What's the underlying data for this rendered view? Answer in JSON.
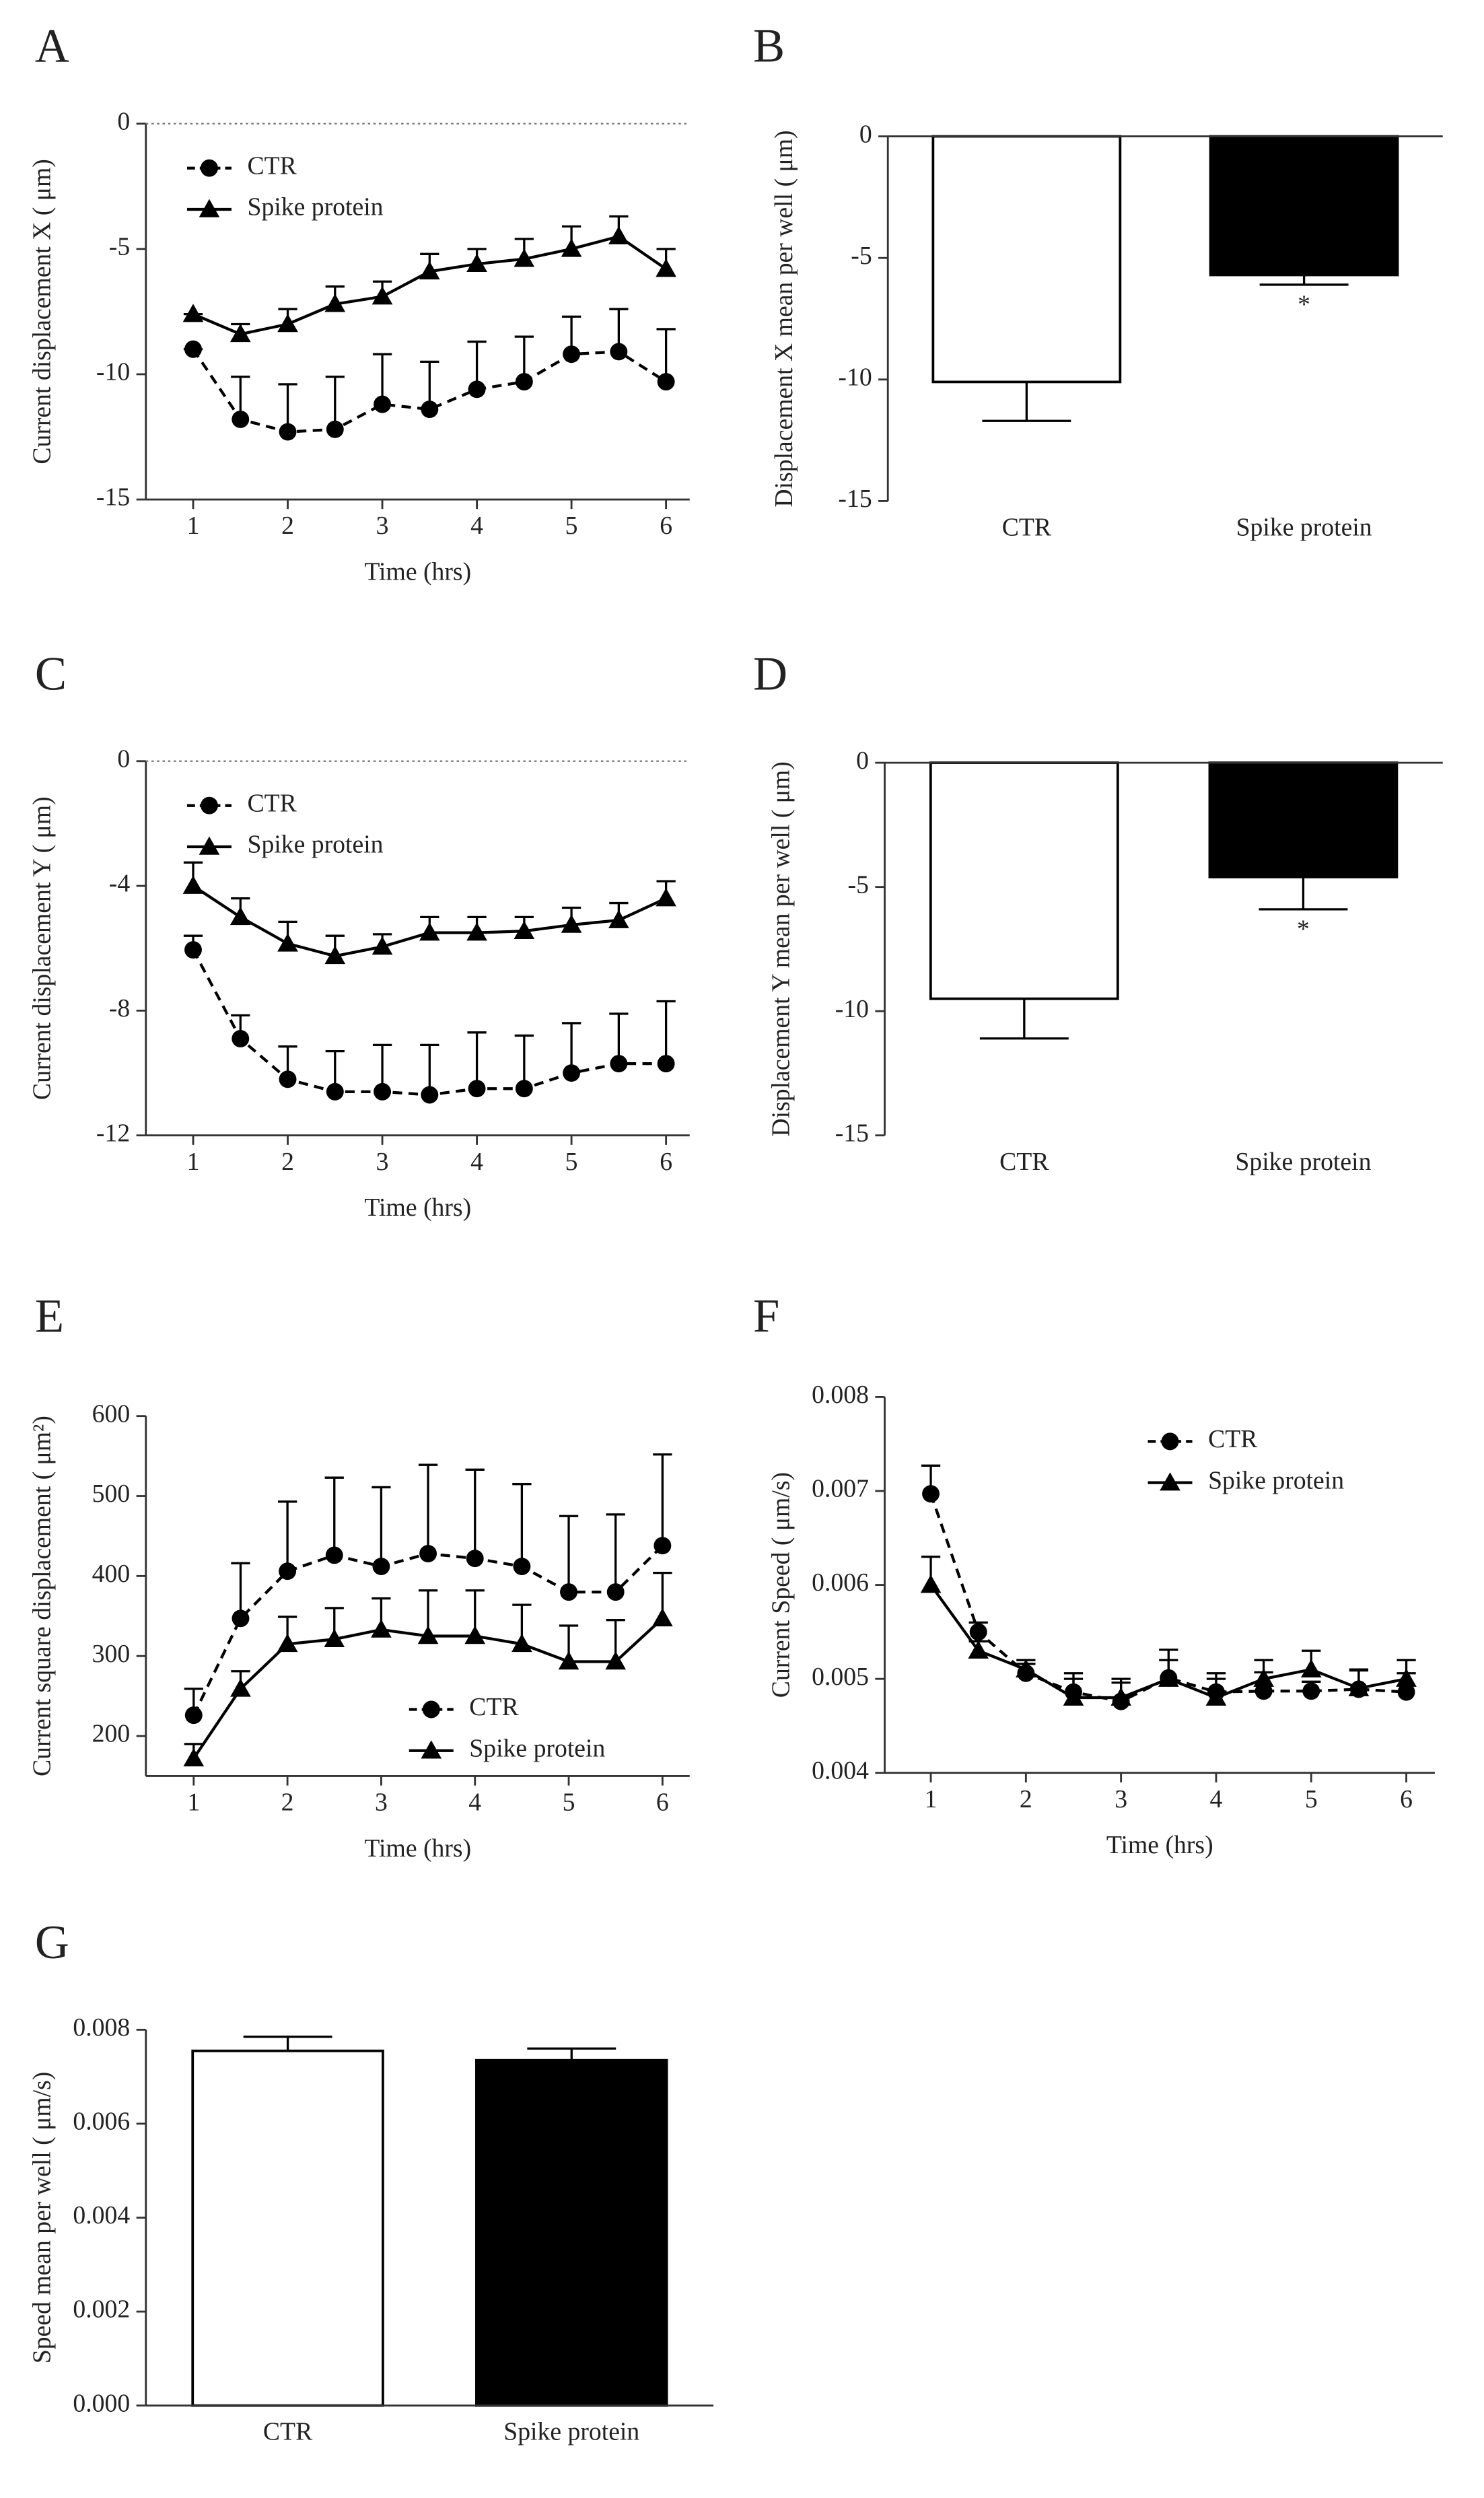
{
  "chart_data": [
    {
      "type": "line",
      "panel_label": "A",
      "xlabel": "Time (hrs)",
      "ylabel": "Current displacement X ( μm)",
      "x": [
        1,
        1.5,
        2,
        2.5,
        3,
        3.5,
        4,
        4.5,
        5,
        5.5,
        6
      ],
      "xlim": [
        0.5,
        6.25
      ],
      "xticks": [
        1,
        2,
        3,
        4,
        5,
        6
      ],
      "ylim": [
        -15,
        0
      ],
      "yticks": [
        0,
        -5,
        -10,
        -15
      ],
      "zero_line": true,
      "legend": "upper left",
      "series": [
        {
          "name": "CTR",
          "color": "#000000",
          "marker": "circle",
          "dashed": true,
          "values": [
            -9.0,
            -11.8,
            -12.3,
            -12.2,
            -11.2,
            -11.4,
            -10.6,
            -10.3,
            -9.2,
            -9.1,
            -10.3
          ],
          "errors": [
            0,
            1.7,
            1.9,
            2.1,
            2.0,
            1.9,
            1.9,
            1.8,
            1.5,
            1.7,
            2.1
          ]
        },
        {
          "name": "Spike protein",
          "color": "#000000",
          "marker": "triangle",
          "dashed": false,
          "values": [
            -7.6,
            -8.4,
            -8.0,
            -7.2,
            -6.9,
            -5.9,
            -5.6,
            -5.4,
            -5.0,
            -4.5,
            -5.8
          ],
          "errors": [
            0,
            0.4,
            0.6,
            0.7,
            0.6,
            0.7,
            0.6,
            0.8,
            0.9,
            0.8,
            0.8
          ]
        }
      ]
    },
    {
      "type": "bar",
      "panel_label": "B",
      "ylabel": "Displacement X mean per well ( μm)",
      "categories": [
        "CTR",
        "Spike protein"
      ],
      "values": [
        -10.1,
        -5.7
      ],
      "errors": [
        1.6,
        0.4
      ],
      "colors": [
        "#ffffff",
        "#000000"
      ],
      "value_annotations": [
        null,
        "*"
      ],
      "ylim": [
        -15,
        0
      ],
      "yticks": [
        0,
        -5,
        -10,
        -15
      ]
    },
    {
      "type": "line",
      "panel_label": "C",
      "xlabel": "Time (hrs)",
      "ylabel": "Current displacement Y ( μm)",
      "x": [
        1,
        1.5,
        2,
        2.5,
        3,
        3.5,
        4,
        4.5,
        5,
        5.5,
        6
      ],
      "xlim": [
        0.5,
        6.25
      ],
      "xticks": [
        1,
        2,
        3,
        4,
        5,
        6
      ],
      "ylim": [
        -12,
        0
      ],
      "yticks": [
        0,
        -4,
        -8,
        -12
      ],
      "zero_line": true,
      "legend": "upper left",
      "series": [
        {
          "name": "CTR",
          "color": "#000000",
          "marker": "circle",
          "dashed": true,
          "values": [
            -6.05,
            -8.9,
            -10.2,
            -10.6,
            -10.6,
            -10.7,
            -10.5,
            -10.5,
            -10.0,
            -9.7,
            -9.7
          ],
          "errors": [
            0.45,
            0.75,
            1.05,
            1.3,
            1.5,
            1.6,
            1.8,
            1.7,
            1.6,
            1.6,
            2.0
          ]
        },
        {
          "name": "Spike protein",
          "color": "#000000",
          "marker": "triangle",
          "dashed": false,
          "values": [
            -4.0,
            -5.0,
            -5.85,
            -6.25,
            -5.95,
            -5.5,
            -5.5,
            -5.45,
            -5.25,
            -5.1,
            -4.4
          ],
          "errors": [
            0.75,
            0.6,
            0.7,
            0.65,
            0.4,
            0.5,
            0.5,
            0.45,
            0.55,
            0.55,
            0.55
          ]
        }
      ]
    },
    {
      "type": "bar",
      "panel_label": "D",
      "ylabel": "Displacement Y mean per well ( μm)",
      "categories": [
        "CTR",
        "Spike protein"
      ],
      "values": [
        -9.5,
        -4.6
      ],
      "errors": [
        1.6,
        1.3
      ],
      "colors": [
        "#ffffff",
        "#000000"
      ],
      "value_annotations": [
        null,
        "*"
      ],
      "ylim": [
        -15,
        0
      ],
      "yticks": [
        0,
        -5,
        -10,
        -15
      ]
    },
    {
      "type": "line",
      "panel_label": "E",
      "xlabel": "Time (hrs)",
      "ylabel": "Current square displacement ( μm²)",
      "x": [
        1,
        1.5,
        2,
        2.5,
        3,
        3.5,
        4,
        4.5,
        5,
        5.5,
        6
      ],
      "xlim": [
        0.49,
        6.29
      ],
      "xticks": [
        1,
        2,
        3,
        4,
        5,
        6
      ],
      "ylim": [
        150,
        600
      ],
      "yticks": [
        200,
        300,
        400,
        500,
        600
      ],
      "zero_line": false,
      "legend": "lower right",
      "series": [
        {
          "name": "CTR",
          "color": "#000000",
          "marker": "circle",
          "dashed": true,
          "values": [
            226,
            347,
            406,
            426,
            412,
            428,
            422,
            412,
            380,
            380,
            438
          ],
          "errors": [
            33,
            69,
            87,
            97,
            99,
            111,
            111,
            103,
            95,
            97,
            114
          ]
        },
        {
          "name": "Spike protein",
          "color": "#000000",
          "marker": "triangle",
          "dashed": false,
          "values": [
            172,
            259,
            315,
            321,
            333,
            325,
            325,
            315,
            293,
            293,
            347
          ],
          "errors": [
            18,
            22,
            34,
            39,
            39,
            57,
            57,
            49,
            45,
            52,
            57
          ]
        }
      ]
    },
    {
      "type": "line",
      "panel_label": "F",
      "xlabel": "Time (hrs)",
      "ylabel": "Current Speed ( μm/s)",
      "x": [
        1,
        1.5,
        2,
        2.5,
        3,
        3.5,
        4,
        4.5,
        5,
        5.5,
        6
      ],
      "xlim": [
        0.515,
        6.3
      ],
      "xticks": [
        1,
        2,
        3,
        4,
        5,
        6
      ],
      "ylim": [
        0.004,
        0.008
      ],
      "yticks": [
        0.004,
        0.005,
        0.006,
        0.007,
        0.008
      ],
      "zero_line": false,
      "legend": "upper right",
      "series": [
        {
          "name": "CTR",
          "color": "#000000",
          "marker": "circle",
          "dashed": true,
          "values": [
            0.00697,
            0.0055,
            0.00506,
            0.00486,
            0.00476,
            0.00501,
            0.00486,
            0.00487,
            0.00487,
            0.00489,
            0.00486
          ],
          "errors": [
            0.0003,
            0.0001,
            0.0001,
            0.0002,
            0.0002,
            0.0003,
            0.0002,
            0.0002,
            0.0001,
            0.0002,
            0.0002
          ]
        },
        {
          "name": "Spike protein",
          "color": "#000000",
          "marker": "triangle",
          "dashed": false,
          "values": [
            0.006,
            0.0053,
            0.0051,
            0.0048,
            0.0048,
            0.005,
            0.0048,
            0.005,
            0.0051,
            0.0049,
            0.005
          ],
          "errors": [
            0.0003,
            0.0001,
            0.0001,
            0.0002,
            0.0002,
            0.0002,
            0.0002,
            0.0002,
            0.0002,
            0.0002,
            0.0002
          ]
        }
      ]
    },
    {
      "type": "bar",
      "panel_label": "G",
      "ylabel": "Speed mean per well ( μm/s)",
      "categories": [
        "CTR",
        "Spike protein"
      ],
      "values": [
        0.00755,
        0.00735
      ],
      "errors": [
        0.0003,
        0.00025
      ],
      "colors": [
        "#ffffff",
        "#000000"
      ],
      "value_annotations": [
        null,
        null
      ],
      "ylim": [
        0,
        0.008
      ],
      "yticks": [
        {
          "value": 0,
          "label": "0.000"
        },
        0.002,
        0.004,
        0.006,
        0.008
      ]
    }
  ]
}
